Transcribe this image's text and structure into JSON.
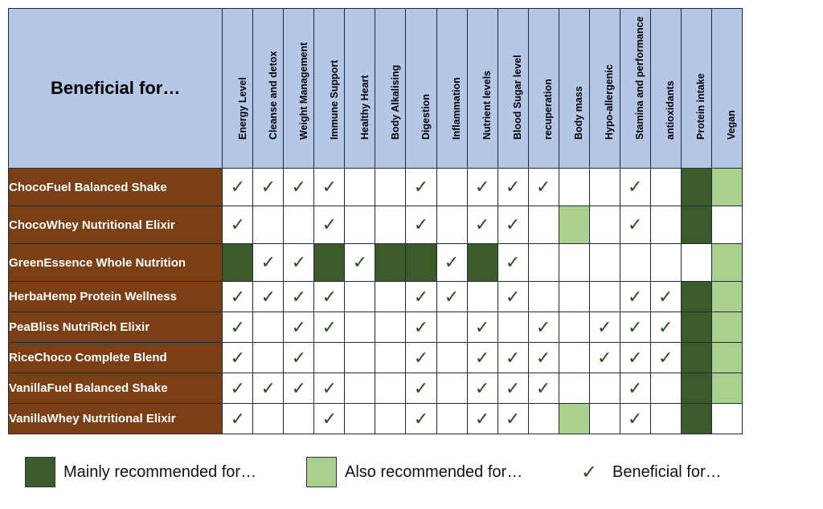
{
  "header": {
    "title": "Beneficial for…"
  },
  "columns": [
    "Energy Level",
    "Cleanse and detox",
    "Weight Management",
    "Immune  Support",
    "Healthy Heart",
    "Body Alkalising",
    "Digestion",
    "Inflammation",
    "Nutrient levels",
    "Blood Sugar level",
    "recuperation",
    "Body mass",
    "Hypo-allergenic",
    "Stamina and performance",
    "antioxidants",
    "Protein intake",
    "Vegan"
  ],
  "rows": [
    {
      "name": "ChocoFuel Balanced Shake",
      "cells": [
        "c",
        "c",
        "c",
        "c",
        "",
        "",
        "c",
        "",
        "c",
        "c",
        "c",
        "",
        "",
        "c",
        "",
        "M",
        "A"
      ]
    },
    {
      "name": "ChocoWhey Nutritional Elixir",
      "cells": [
        "c",
        "",
        "",
        "c",
        "",
        "",
        "c",
        "",
        "c",
        "c",
        "",
        "A",
        "",
        "c",
        "",
        "M",
        ""
      ]
    },
    {
      "name": "GreenEssence Whole Nutrition",
      "cells": [
        "M",
        "c",
        "c",
        "M",
        "c",
        "M",
        "M",
        "c",
        "M",
        "c",
        "",
        "",
        "",
        "",
        "",
        "",
        "A"
      ]
    },
    {
      "name": "HerbaHemp Protein Wellness",
      "cells": [
        "c",
        "c",
        "c",
        "c",
        "",
        "",
        "c",
        "c",
        "",
        "c",
        "",
        "",
        "",
        "c",
        "c",
        "M",
        "A"
      ]
    },
    {
      "name": "PeaBliss NutriRich Elixir",
      "cells": [
        "c",
        "",
        "c",
        "c",
        "",
        "",
        "c",
        "",
        "c",
        "",
        "c",
        "",
        "c",
        "c",
        "c",
        "M",
        "A"
      ]
    },
    {
      "name": "RiceChoco Complete Blend",
      "cells": [
        "c",
        "",
        "c",
        "",
        "",
        "",
        "c",
        "",
        "c",
        "c",
        "c",
        "",
        "c",
        "c",
        "c",
        "M",
        "A"
      ]
    },
    {
      "name": "VanillaFuel Balanced Shake",
      "cells": [
        "c",
        "c",
        "c",
        "c",
        "",
        "",
        "c",
        "",
        "c",
        "c",
        "c",
        "",
        "",
        "c",
        "",
        "M",
        "A"
      ]
    },
    {
      "name": "VanillaWhey Nutritional Elixir",
      "cells": [
        "c",
        "",
        "",
        "c",
        "",
        "",
        "c",
        "",
        "c",
        "c",
        "",
        "A",
        "",
        "c",
        "",
        "M",
        ""
      ]
    }
  ],
  "check_mark": "✓",
  "legend": {
    "main_label": "Mainly recommended for…",
    "also_label": "Also recommended for…",
    "check_label": "Beneficial for…"
  },
  "colors": {
    "main": "#3d5a2b",
    "also": "#a9d08e",
    "header": "#b4c7e7",
    "row_header": "#7b3f16"
  }
}
